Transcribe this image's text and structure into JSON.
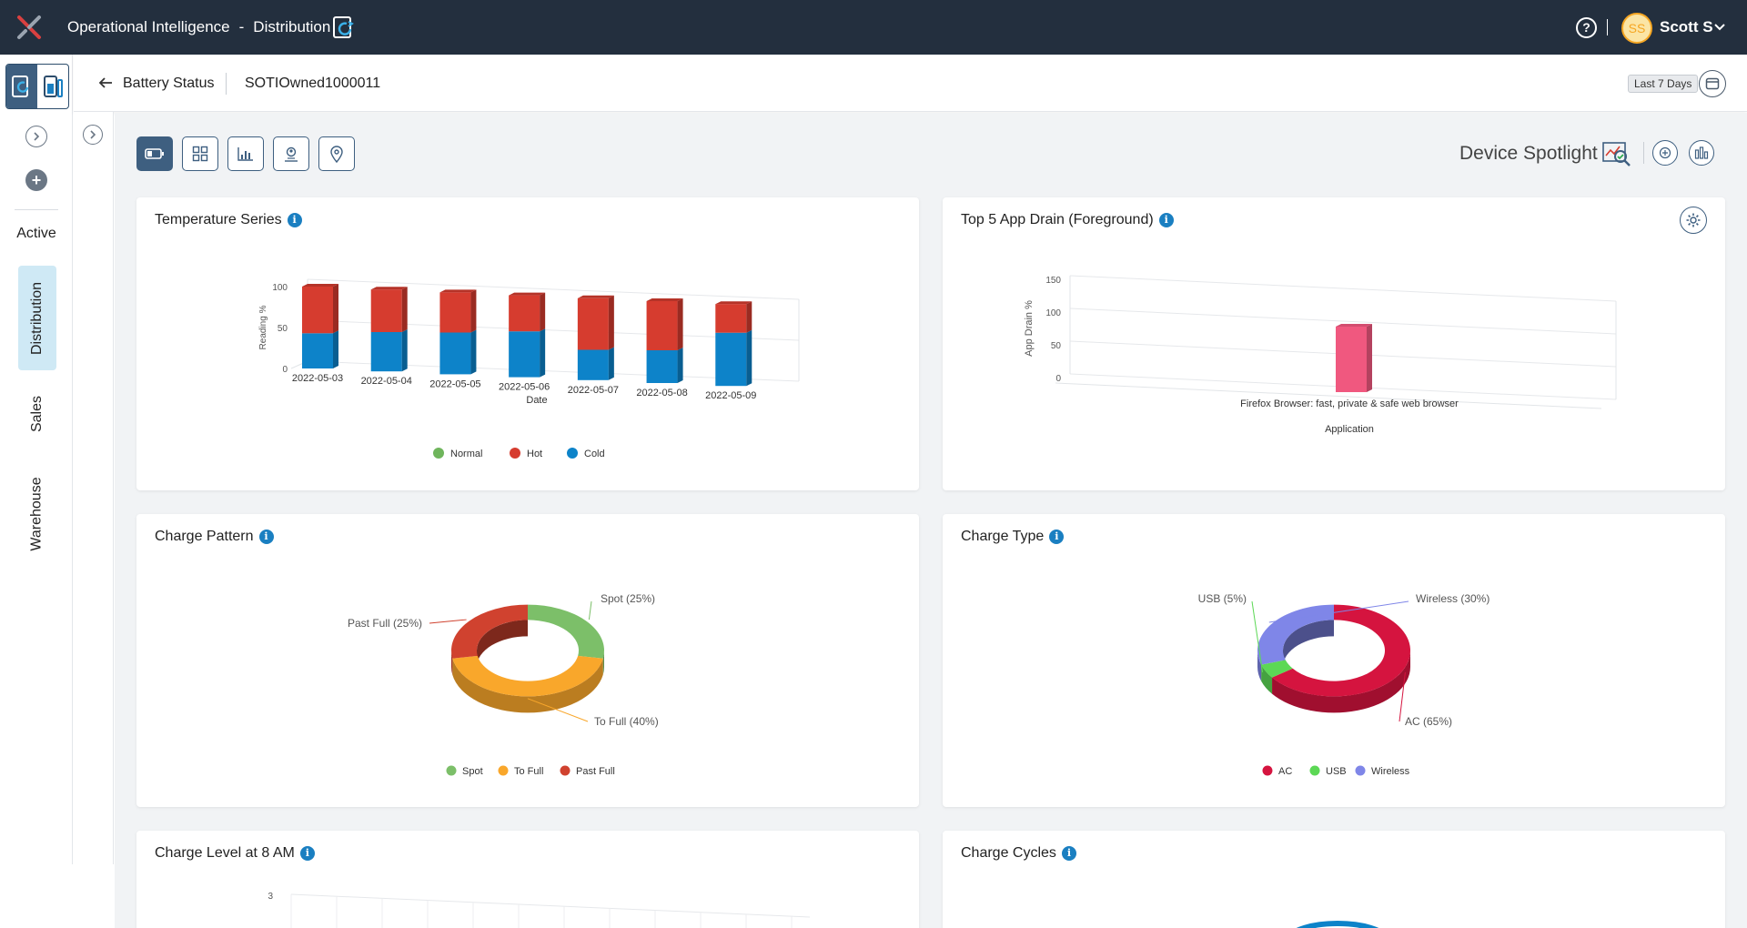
{
  "topbar": {
    "title_primary": "Operational Intelligence",
    "title_separator": "-",
    "title_secondary": "Distribution",
    "help_glyph": "?",
    "avatar_initials": "SS",
    "user_name": "Scott S"
  },
  "rail": {
    "active_label": "Active",
    "tabs": [
      "Distribution",
      "Sales",
      "Warehouse"
    ],
    "selected_tab": "Distribution"
  },
  "breadcrumb": {
    "section": "Battery Status",
    "device": "SOTIOwned1000011",
    "date_range": "Last 7 Days"
  },
  "toolbar": {
    "views": [
      "battery-icon",
      "grid-icon",
      "chart-icon",
      "person-location-icon",
      "location-pin-icon"
    ],
    "selected_view": "battery-icon",
    "spotlight_label": "Device Spotlight"
  },
  "cards": {
    "temperature": {
      "title": "Temperature Series",
      "info": "i"
    },
    "app_drain": {
      "title": "Top 5 App Drain (Foreground)",
      "info": "i"
    },
    "charge_pattern": {
      "title": "Charge Pattern",
      "info": "i"
    },
    "charge_type": {
      "title": "Charge Type",
      "info": "i"
    },
    "charge_level": {
      "title": "Charge Level at 8 AM",
      "info": "i"
    },
    "charge_cycles": {
      "title": "Charge Cycles",
      "info": "i"
    }
  },
  "chart_data": [
    {
      "id": "temperature",
      "type": "bar",
      "stacked": true,
      "categories": [
        "2022-05-03",
        "2022-05-04",
        "2022-05-05",
        "2022-05-06",
        "2022-05-07",
        "2022-05-08",
        "2022-05-09"
      ],
      "series": [
        {
          "name": "Normal",
          "color": "#6fb55c",
          "values": [
            0,
            0,
            0,
            0,
            0,
            0,
            0
          ]
        },
        {
          "name": "Cold",
          "color": "#0d83c9",
          "values": [
            43,
            48,
            51,
            56,
            37,
            40,
            65
          ]
        },
        {
          "name": "Hot",
          "color": "#d63c2f",
          "values": [
            57,
            52,
            49,
            44,
            63,
            60,
            35
          ]
        }
      ],
      "xlabel": "Date",
      "ylabel": "Reading %",
      "yticks": [
        0,
        50,
        100
      ],
      "ylim": [
        0,
        100
      ],
      "legend": "bottom"
    },
    {
      "id": "app_drain",
      "type": "bar",
      "categories": [
        "Firefox Browser: fast, private & safe web browser"
      ],
      "values": [
        100
      ],
      "color": "#f0587f",
      "xlabel": "Application",
      "ylabel": "App Drain %",
      "yticks": [
        0,
        50,
        100,
        150
      ],
      "ylim": [
        0,
        150
      ]
    },
    {
      "id": "charge_pattern",
      "type": "pie",
      "donut": true,
      "slices": [
        {
          "name": "Spot",
          "value": 25,
          "label": "Spot (25%)",
          "color": "#7cbf69"
        },
        {
          "name": "To Full",
          "value": 40,
          "label": "To Full (40%)",
          "color": "#f9a72b"
        },
        {
          "name": "Past Full",
          "value": 25,
          "label": "Past Full (25%)",
          "color": "#d0422f"
        }
      ],
      "legend": "bottom"
    },
    {
      "id": "charge_type",
      "type": "pie",
      "donut": true,
      "slices": [
        {
          "name": "AC",
          "value": 65,
          "label": "AC (65%)",
          "color": "#d5143f"
        },
        {
          "name": "USB",
          "value": 5,
          "label": "USB (5%)",
          "color": "#5cd855"
        },
        {
          "name": "Wireless",
          "value": 30,
          "label": "Wireless (30%)",
          "color": "#7f86e8"
        }
      ],
      "legend": "bottom"
    },
    {
      "id": "charge_level",
      "type": "bar",
      "yticks": [
        3
      ]
    }
  ]
}
